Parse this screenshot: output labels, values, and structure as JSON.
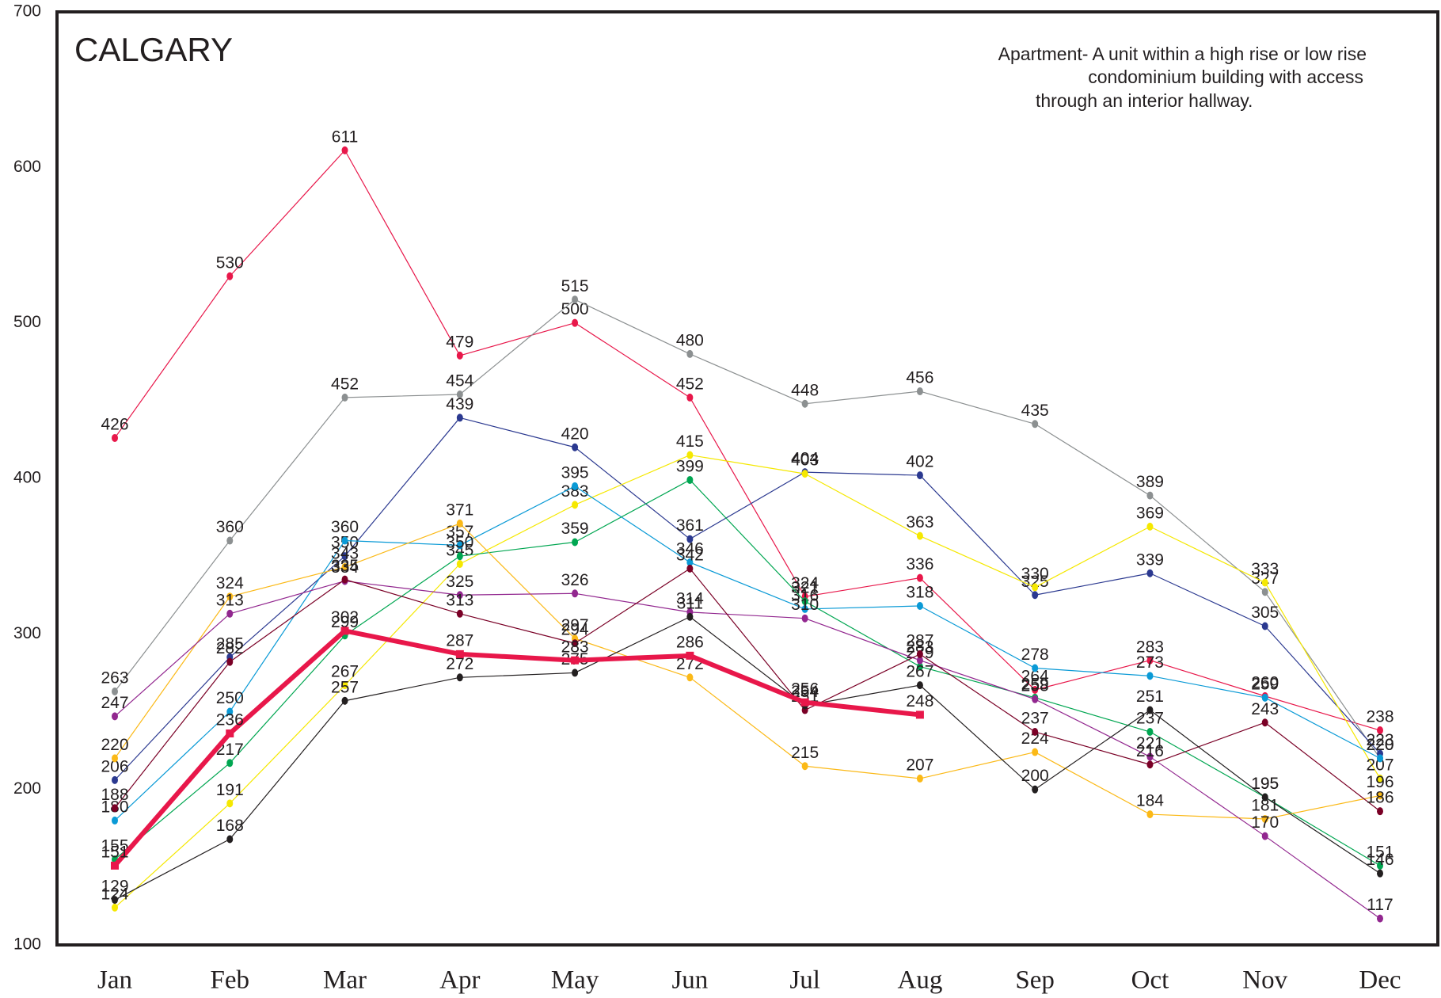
{
  "chart_data": {
    "type": "line",
    "title": "CALGARY",
    "annotation": [
      "Apartment- A unit within a high rise or low rise",
      "condominium building with access",
      "through an interior hallway."
    ],
    "categories": [
      "Jan",
      "Feb",
      "Mar",
      "Apr",
      "May",
      "Jun",
      "Jul",
      "Aug",
      "Sep",
      "Oct",
      "Nov",
      "Dec"
    ],
    "ylim": [
      100,
      700
    ],
    "yticks": [
      100,
      200,
      300,
      400,
      500,
      600,
      700
    ],
    "grid": false,
    "series": [
      {
        "color": "#e8174a",
        "values": [
          426,
          530,
          611,
          479,
          500,
          452,
          324,
          336,
          264,
          283,
          260,
          238
        ]
      },
      {
        "color": "#8c9091",
        "values": [
          263,
          360,
          452,
          454,
          515,
          480,
          448,
          456,
          435,
          389,
          327,
          220
        ]
      },
      {
        "color": "#2b3990",
        "values": [
          206,
          285,
          350,
          439,
          420,
          361,
          404,
          402,
          325,
          339,
          305,
          223
        ]
      },
      {
        "color": "#f5e800",
        "values": [
          124,
          191,
          267,
          345,
          383,
          415,
          403,
          363,
          330,
          369,
          333,
          207
        ]
      },
      {
        "color": "#0a9ad6",
        "values": [
          180,
          250,
          360,
          357,
          395,
          346,
          316,
          318,
          278,
          273,
          259,
          220
        ]
      },
      {
        "color": "#00a651",
        "values": [
          155,
          217,
          299,
          350,
          359,
          399,
          321,
          279,
          259,
          237,
          195,
          151
        ]
      },
      {
        "color": "#fbb917",
        "values": [
          220,
          324,
          343,
          371,
          297,
          272,
          215,
          207,
          224,
          184,
          181,
          196
        ]
      },
      {
        "color": "#92278f",
        "values": [
          247,
          313,
          334,
          325,
          326,
          314,
          310,
          283,
          258,
          221,
          170,
          117
        ]
      },
      {
        "color": "#7a0026",
        "values": [
          188,
          282,
          335,
          313,
          294,
          342,
          251,
          287,
          237,
          216,
          243,
          186
        ]
      },
      {
        "color": "#231f20",
        "values": [
          129,
          168,
          257,
          272,
          275,
          311,
          254,
          267,
          200,
          251,
          195,
          146
        ]
      },
      {
        "color": "#e8174a",
        "linewidth": 6,
        "marker": "square",
        "values": [
          151,
          236,
          302,
          287,
          283,
          286,
          256,
          248,
          null,
          null,
          null,
          null
        ]
      }
    ]
  }
}
